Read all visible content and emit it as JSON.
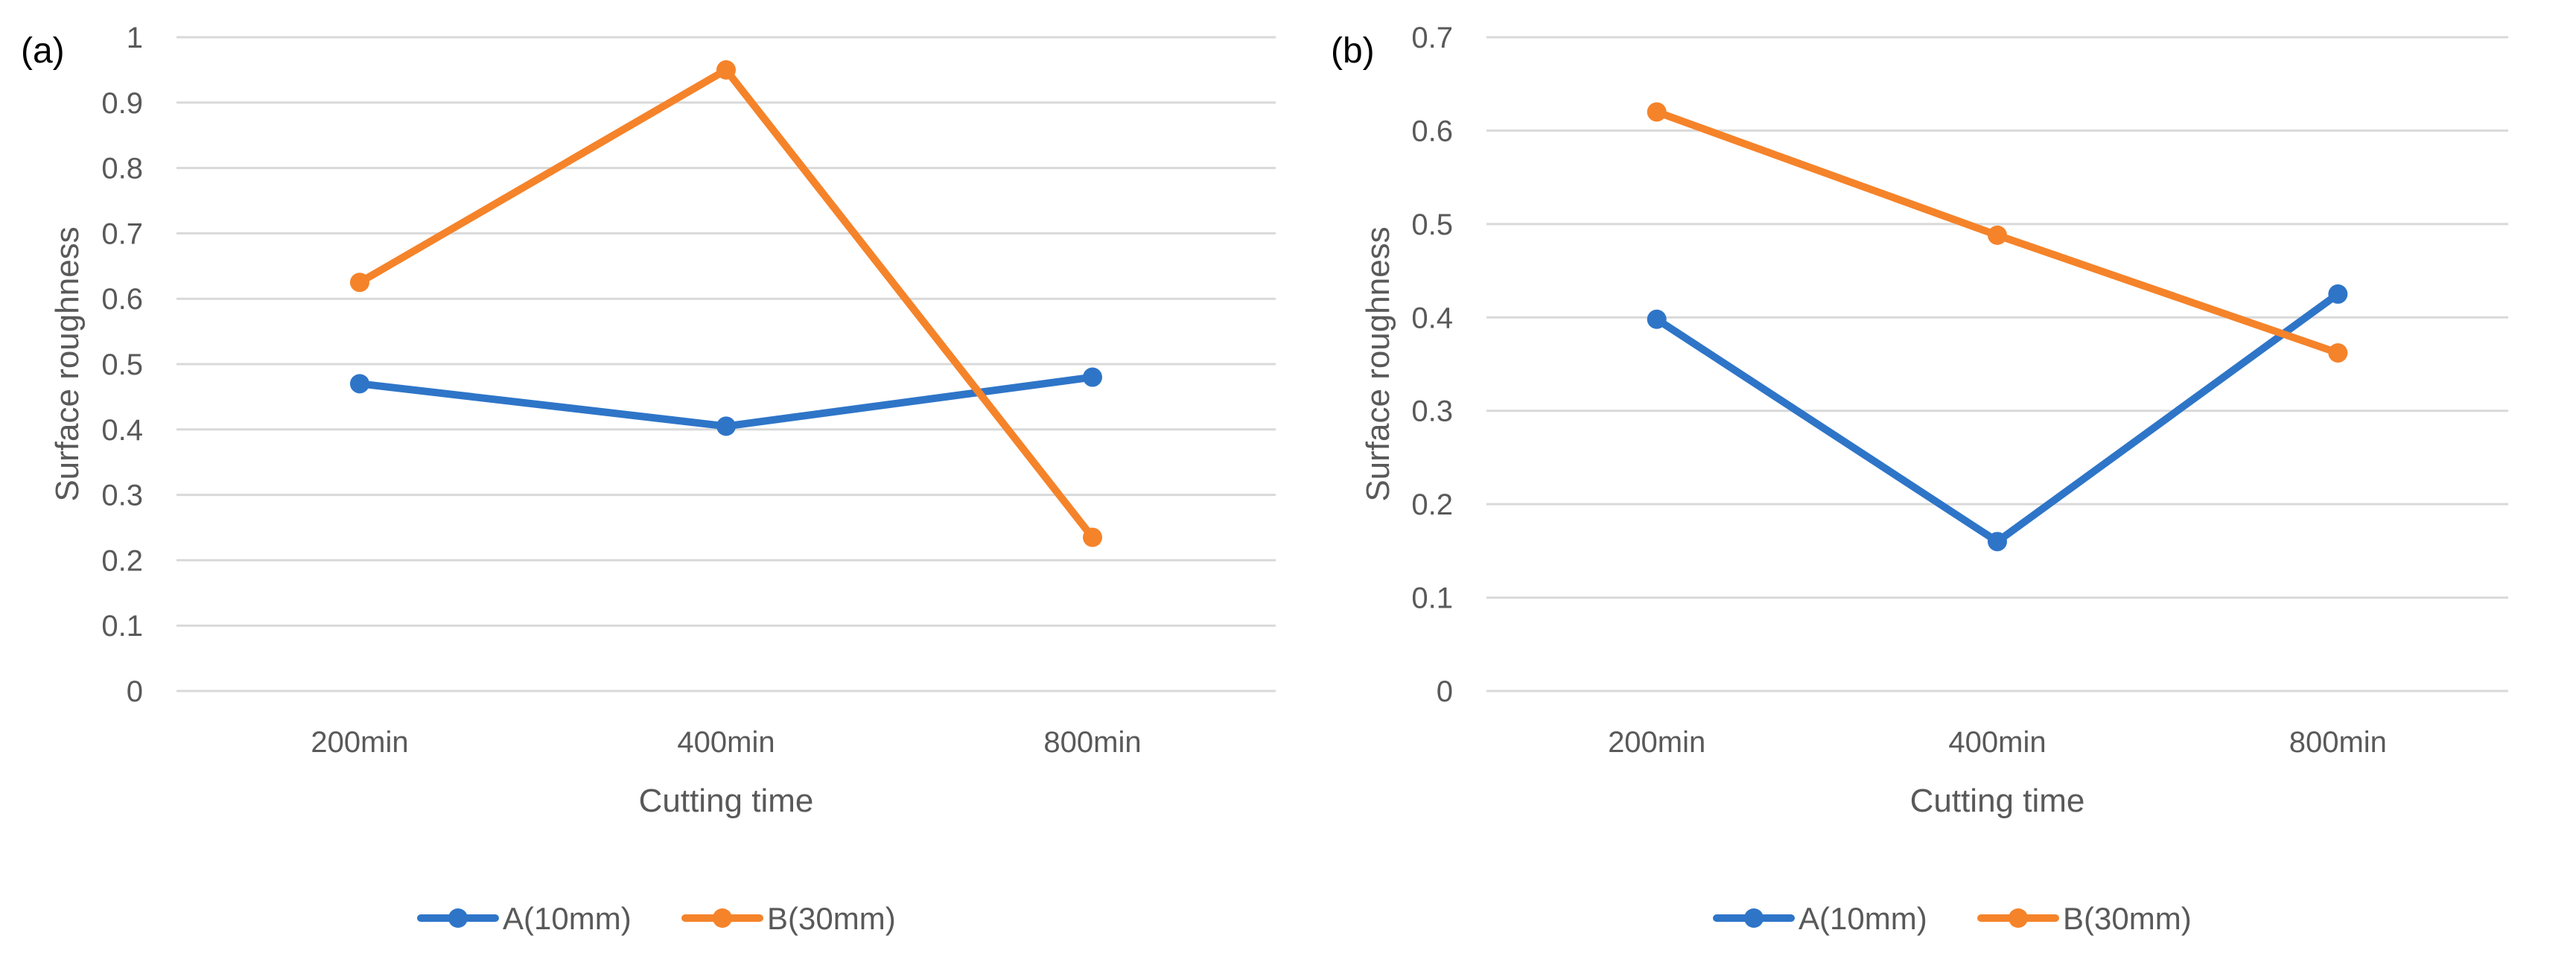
{
  "chart_data": [
    {
      "type": "line",
      "panel_label": "(a)",
      "categories": [
        "200min",
        "400min",
        "800min"
      ],
      "series": [
        {
          "name": "A(10mm)",
          "color": "#2e75c8",
          "values": [
            0.47,
            0.405,
            0.48
          ]
        },
        {
          "name": "B(30mm)",
          "color": "#f5832a",
          "values": [
            0.625,
            0.95,
            0.235
          ]
        }
      ],
      "xlabel": "Cutting time",
      "ylabel": "Surface roughness",
      "ylim": [
        0,
        1
      ],
      "yticks": [
        0,
        0.1,
        0.2,
        0.3,
        0.4,
        0.5,
        0.6,
        0.7,
        0.8,
        0.9,
        1
      ],
      "ytick_labels": [
        "0",
        "0.1",
        "0.2",
        "0.3",
        "0.4",
        "0.5",
        "0.6",
        "0.7",
        "0.8",
        "0.9",
        "1"
      ],
      "grid": true,
      "legend_position": "bottom"
    },
    {
      "type": "line",
      "panel_label": "(b)",
      "categories": [
        "200min",
        "400min",
        "800min"
      ],
      "series": [
        {
          "name": "A(10mm)",
          "color": "#2e75c8",
          "values": [
            0.398,
            0.16,
            0.425
          ]
        },
        {
          "name": "B(30mm)",
          "color": "#f5832a",
          "values": [
            0.62,
            0.488,
            0.362
          ]
        }
      ],
      "xlabel": "Cutting time",
      "ylabel": "Surface roughness",
      "ylim": [
        0,
        0.7
      ],
      "yticks": [
        0,
        0.1,
        0.2,
        0.3,
        0.4,
        0.5,
        0.6,
        0.7
      ],
      "ytick_labels": [
        "0",
        "0.1",
        "0.2",
        "0.3",
        "0.4",
        "0.5",
        "0.6",
        "0.7"
      ],
      "grid": true,
      "legend_position": "bottom"
    }
  ]
}
